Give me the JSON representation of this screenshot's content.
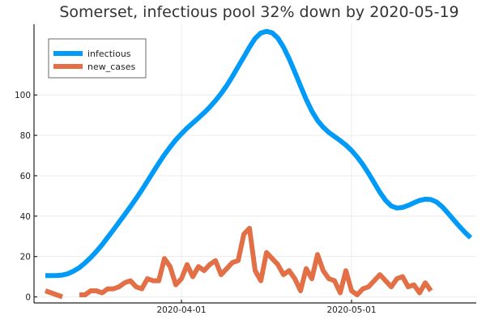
{
  "chart_data": {
    "type": "line",
    "title": "Somerset, infectious pool 32% down by 2020-05-19",
    "xlabel": "",
    "ylabel": "",
    "x_start": "2020-03-08",
    "x_end": "2020-05-21",
    "xlim": [
      "2020-03-06",
      "2020-05-23"
    ],
    "ylim": [
      -3,
      135
    ],
    "x_ticks": [
      "2020-04-01",
      "2020-05-01"
    ],
    "y_ticks": [
      0,
      20,
      40,
      60,
      80,
      100
    ],
    "grid": true,
    "legend_position": "top-left",
    "series": [
      {
        "name": "infectious",
        "color": "#009af9",
        "values": [
          10.5,
          10.5,
          10.6,
          10.8,
          11.5,
          12.8,
          14.5,
          16.8,
          19.5,
          22.5,
          25.8,
          29.5,
          33.2,
          37,
          40.8,
          44.7,
          48.7,
          52.9,
          57.3,
          61.8,
          66.2,
          70.4,
          74.2,
          77.7,
          80.8,
          83.6,
          86.1,
          88.6,
          91.2,
          94,
          97.2,
          100.7,
          104.7,
          109.2,
          114,
          118.8,
          123.7,
          128,
          130.7,
          131.5,
          130.8,
          128.2,
          123.7,
          117.9,
          111.3,
          104.5,
          97.8,
          92,
          87.4,
          84,
          81.4,
          79.4,
          77.4,
          75.2,
          72.5,
          69.3,
          65.5,
          61.2,
          56.5,
          51.8,
          47.8,
          45,
          44,
          44.3,
          45.3,
          46.6,
          47.8,
          48.4,
          48.2,
          47,
          44.6,
          41.5,
          38.2,
          35,
          32,
          29.3
        ]
      },
      {
        "name": "new_cases",
        "color": "#e26f46",
        "values": [
          3,
          2,
          1,
          0,
          null,
          null,
          1,
          1,
          3,
          3,
          2,
          4,
          4,
          5,
          7,
          8,
          5,
          4,
          9,
          8,
          8,
          19,
          15,
          6,
          9,
          16,
          10,
          15,
          13,
          16,
          18,
          11,
          14,
          17,
          18,
          31,
          34,
          13,
          8,
          22,
          19,
          16,
          11,
          13,
          9,
          3,
          14,
          9,
          21,
          13,
          9,
          8,
          2,
          13,
          3,
          1,
          4,
          5,
          8,
          11,
          8,
          5,
          9,
          10,
          5,
          6,
          2,
          7,
          3
        ]
      }
    ]
  }
}
